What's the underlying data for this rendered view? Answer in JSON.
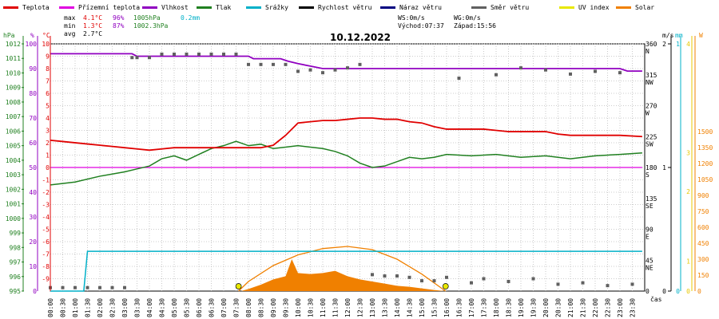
{
  "chart_data": {
    "type": "line",
    "title": "10.12.2022",
    "xlabel": "čas",
    "legend": [
      {
        "name": "Teplota",
        "color": "#e00000"
      },
      {
        "name": "Přízemní teplota",
        "color": "#e000e0"
      },
      {
        "name": "Vlhkost",
        "color": "#9000c0"
      },
      {
        "name": "Tlak",
        "color": "#208020"
      },
      {
        "name": "Srážky",
        "color": "#00b0c8"
      },
      {
        "name": "Rychlost větru",
        "color": "#000000"
      },
      {
        "name": "Náraz větru",
        "color": "#000080"
      },
      {
        "name": "Směr větru",
        "color": "#606060"
      },
      {
        "name": "UV index",
        "color": "#e8e800"
      },
      {
        "name": "Solar",
        "color": "#f08000"
      }
    ],
    "stats": {
      "max": {
        "label": "max",
        "temp": "4.1°C",
        "hum": "96%",
        "press": "1005hPa",
        "rain": "0.2mm"
      },
      "min": {
        "label": "min",
        "temp": "1.3°C",
        "hum": "87%",
        "press": "1002.3hPa"
      },
      "avg": {
        "label": "avg",
        "temp": "2.7°C"
      }
    },
    "wind": {
      "ws": "WS:0m/s",
      "wg": "WG:0m/s",
      "sunrise": "Východ:07:37",
      "sunset": "Západ:15:56"
    },
    "axes": {
      "hpa": {
        "unit": "hPa",
        "ticks": [
          "1012",
          "1011",
          "1010",
          "1009",
          "1008",
          "1007",
          "1006",
          "1005",
          "1004",
          "1003",
          "1002",
          "1001",
          "1000",
          "999",
          "998",
          "997",
          "996",
          "995"
        ]
      },
      "pct": {
        "unit": "%",
        "ticks": [
          "100",
          "90",
          "80",
          "70",
          "60",
          "50",
          "40",
          "30",
          "20",
          "10",
          "0"
        ]
      },
      "temp": {
        "unit": "°C",
        "ticks": [
          "10",
          "9",
          "8",
          "7",
          "6",
          "5",
          "4",
          "3",
          "2",
          "1",
          "0",
          "-1",
          "-2",
          "-3",
          "-4",
          "-5",
          "-6",
          "-7",
          "-8",
          "-9"
        ]
      },
      "dir": {
        "ticks": [
          {
            "deg": "360",
            "lab": "N"
          },
          {
            "deg": "315",
            "lab": "NW"
          },
          {
            "deg": "270",
            "lab": "W"
          },
          {
            "deg": "225",
            "lab": "SW"
          },
          {
            "deg": "180",
            "lab": "S"
          },
          {
            "deg": "135",
            "lab": "SE"
          },
          {
            "deg": "90",
            "lab": "E"
          },
          {
            "deg": "45",
            "lab": "NE"
          },
          {
            "deg": "0",
            "lab": ""
          }
        ]
      },
      "ms": {
        "unit": "m/s",
        "ticks": [
          "2",
          "1",
          "0"
        ]
      },
      "mm": {
        "unit": "mm",
        "ticks": [
          "1",
          "0"
        ]
      },
      "w": {
        "unit": "W",
        "ticks": [
          "1500",
          "1350",
          "1200",
          "1050",
          "900",
          "750",
          "600",
          "450",
          "300",
          "150",
          "0"
        ]
      },
      "uv": {
        "ticks": [
          "4",
          "3",
          "2",
          "1",
          "0"
        ]
      }
    },
    "x_ticks": [
      "00:00",
      "00:30",
      "01:00",
      "01:30",
      "02:00",
      "02:30",
      "03:00",
      "03:30",
      "04:00",
      "04:30",
      "05:00",
      "05:30",
      "06:00",
      "06:30",
      "07:00",
      "07:30",
      "08:00",
      "08:30",
      "09:00",
      "09:30",
      "10:00",
      "10:30",
      "11:00",
      "11:30",
      "12:00",
      "12:30",
      "13:00",
      "13:30",
      "14:00",
      "14:30",
      "15:00",
      "15:30",
      "16:00",
      "16:30",
      "17:00",
      "17:30",
      "18:00",
      "18:30",
      "19:00",
      "19:30",
      "20:00",
      "20:30",
      "21:00",
      "21:30",
      "22:00",
      "22:30",
      "23:00",
      "23:30"
    ],
    "series": {
      "temperature_c": {
        "x": [
          0,
          0.5,
          1.5,
          2.5,
          3,
          3.5,
          4,
          4.5,
          5,
          5.5,
          6,
          6.5,
          7,
          7.5,
          8,
          8.5,
          9,
          9.5,
          10,
          10.5,
          11,
          11.5,
          12,
          12.5,
          13,
          13.5,
          14,
          14.5,
          15,
          15.5,
          16,
          16.5,
          17,
          17.5,
          18,
          18.5,
          19,
          19.5,
          20,
          20.5,
          21,
          21.5,
          22,
          22.5,
          23,
          23.9
        ],
        "y": [
          2.2,
          2.1,
          1.9,
          1.7,
          1.6,
          1.5,
          1.4,
          1.5,
          1.6,
          1.6,
          1.6,
          1.6,
          1.6,
          1.6,
          1.6,
          1.6,
          1.8,
          2.6,
          3.6,
          3.7,
          3.8,
          3.8,
          3.9,
          4.0,
          4.0,
          3.9,
          3.9,
          3.7,
          3.6,
          3.3,
          3.1,
          3.1,
          3.1,
          3.1,
          3.0,
          2.9,
          2.9,
          2.9,
          2.9,
          2.7,
          2.6,
          2.6,
          2.6,
          2.6,
          2.6,
          2.5
        ]
      },
      "ground_temp_c": {
        "x": [
          0,
          23.9
        ],
        "y": [
          0,
          0
        ]
      },
      "humidity_pct": {
        "x": [
          0,
          3.3,
          3.5,
          5,
          6,
          7,
          8,
          8.2,
          9.3,
          9.6,
          10,
          10.5,
          11,
          11.5,
          12,
          13,
          14,
          15,
          16,
          17,
          18,
          19,
          20,
          21,
          22,
          23,
          23.3,
          23.9
        ],
        "y": [
          96,
          96,
          95,
          95,
          95,
          95,
          95,
          94,
          94,
          93,
          92,
          91,
          90,
          90,
          90,
          90,
          90,
          90,
          90,
          90,
          90,
          90,
          90,
          90,
          90,
          90,
          89,
          89
        ]
      },
      "pressure_hpa": {
        "x": [
          0,
          1,
          2,
          3,
          3.5,
          4,
          4.5,
          5,
          5.5,
          6,
          6.5,
          7,
          7.5,
          8,
          8.5,
          9,
          9.5,
          10,
          10.5,
          11,
          11.5,
          12,
          12.5,
          13,
          13.5,
          14,
          14.5,
          15,
          15.5,
          16,
          17,
          18,
          19,
          20,
          21,
          22,
          23,
          23.9
        ],
        "y": [
          1002.3,
          1002.5,
          1002.9,
          1003.2,
          1003.4,
          1003.6,
          1004.1,
          1004.3,
          1004.0,
          1004.4,
          1004.8,
          1005.0,
          1005.3,
          1005.0,
          1005.1,
          1004.8,
          1004.9,
          1005.0,
          1004.9,
          1004.8,
          1004.6,
          1004.3,
          1003.8,
          1003.5,
          1003.6,
          1003.9,
          1004.2,
          1004.1,
          1004.2,
          1004.4,
          1004.3,
          1004.4,
          1004.2,
          1004.3,
          1004.1,
          1004.3,
          1004.4,
          1004.5
        ]
      },
      "rain_mm": {
        "x": [
          0,
          1.35,
          1.5,
          23.9
        ],
        "y": [
          0,
          0,
          0.2,
          0.2
        ]
      },
      "wind_dir_deg": {
        "x": [
          0,
          0.5,
          1,
          1.5,
          2,
          2.5,
          3,
          3.3,
          3.5,
          4,
          4.5,
          5,
          5.5,
          6,
          6.5,
          7,
          7.5,
          8,
          8.5,
          9,
          9.5,
          10,
          10.5,
          11,
          11.5,
          12,
          12.5,
          13,
          13.5,
          14,
          14.5,
          15,
          15.5,
          16,
          16.5,
          17,
          17.5,
          18,
          18.5,
          19,
          19.5,
          20,
          20.5,
          21,
          21.5,
          22,
          22.5,
          23,
          23.5
        ],
        "y": [
          5,
          5,
          5,
          5,
          5,
          5,
          5,
          340,
          340,
          340,
          345,
          345,
          345,
          345,
          345,
          345,
          345,
          330,
          330,
          330,
          330,
          320,
          322,
          318,
          322,
          325,
          330,
          24,
          22,
          22,
          20,
          15,
          15,
          20,
          310,
          12,
          18,
          315,
          14,
          325,
          18,
          322,
          10,
          316,
          12,
          320,
          8,
          318,
          10
        ]
      },
      "solar_w": {
        "x": [
          7.7,
          8,
          8.5,
          9,
          9.5,
          9.75,
          10,
          10.5,
          11,
          11.5,
          12,
          12.5,
          13,
          13.5,
          14,
          14.5,
          15,
          15.5,
          15.95
        ],
        "y": [
          0,
          20,
          60,
          110,
          140,
          300,
          170,
          160,
          170,
          190,
          140,
          110,
          90,
          70,
          50,
          40,
          25,
          10,
          0
        ]
      },
      "solar_max_w": {
        "x": [
          7.6,
          8,
          9,
          10,
          11,
          12,
          13,
          14,
          15,
          15.96
        ],
        "y": [
          0,
          90,
          240,
          340,
          400,
          420,
          390,
          300,
          160,
          0
        ]
      },
      "uv_index": {
        "x": [
          7.6,
          15.96
        ],
        "y": [
          0,
          0
        ]
      }
    }
  }
}
